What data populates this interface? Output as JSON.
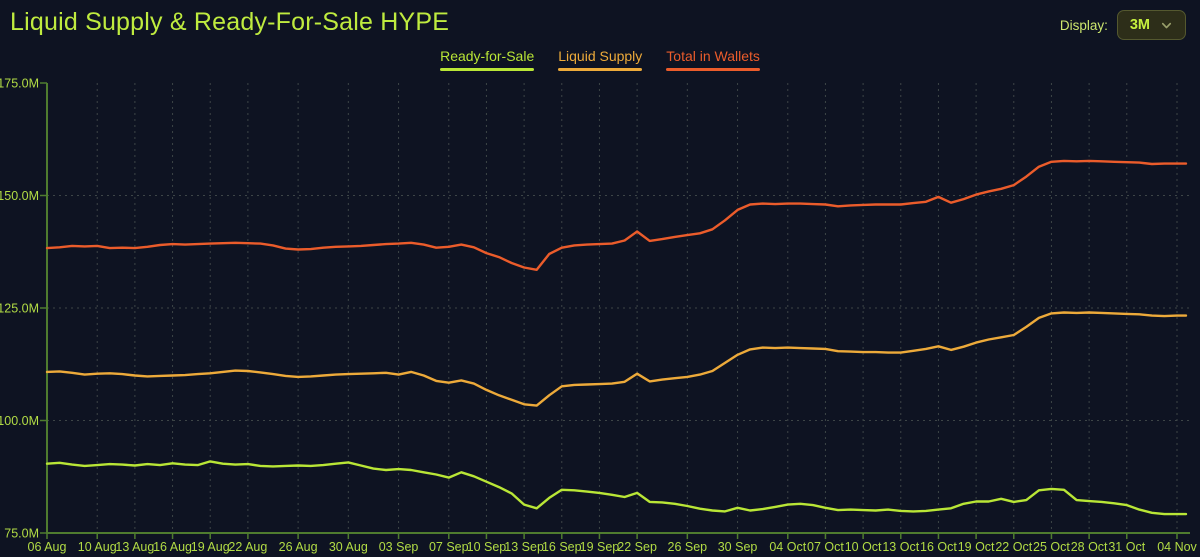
{
  "header": {
    "title": "Liquid Supply & Ready-For-Sale HYPE",
    "display_label": "Display:",
    "display_value": "3M"
  },
  "legend": [
    {
      "label": "Ready-for-Sale",
      "color": "#b9e636"
    },
    {
      "label": "Liquid Supply",
      "color": "#edaa3a"
    },
    {
      "label": "Total in Wallets",
      "color": "#eb5c2b"
    }
  ],
  "colors": {
    "background": "#0e1322",
    "accent": "#bfeb3f",
    "axis_line": "#4f7c2f",
    "axis_label": "#b2dc45",
    "grid": "#3d4547",
    "dropdown_bg": "#2d2e19",
    "dropdown_border": "#54582f",
    "dropdown_text": "#c6f13e",
    "chevron": "#9aa06b"
  },
  "chart_data": {
    "type": "line",
    "title": "Liquid Supply & Ready-For-Sale HYPE",
    "xlabel": "",
    "ylabel": "",
    "ylim": [
      75,
      175
    ],
    "grid": true,
    "legend_position": "top",
    "x_range": [
      "06 Aug",
      "04 Nov"
    ],
    "y_ticks": [
      {
        "label": "175.0M",
        "value": 175
      },
      {
        "label": "150.0M",
        "value": 150
      },
      {
        "label": "125.0M",
        "value": 125
      },
      {
        "label": "100.0M",
        "value": 100
      },
      {
        "label": "75.0M",
        "value": 75
      }
    ],
    "x_ticks": [
      {
        "label": "06 Aug",
        "day": 0
      },
      {
        "label": "10 Aug",
        "day": 4
      },
      {
        "label": "13 Aug",
        "day": 7
      },
      {
        "label": "16 Aug",
        "day": 10
      },
      {
        "label": "19 Aug",
        "day": 13
      },
      {
        "label": "22 Aug",
        "day": 16
      },
      {
        "label": "26 Aug",
        "day": 20
      },
      {
        "label": "30 Aug",
        "day": 24
      },
      {
        "label": "03 Sep",
        "day": 28
      },
      {
        "label": "07 Sep",
        "day": 32
      },
      {
        "label": "10 Sep",
        "day": 35
      },
      {
        "label": "13 Sep",
        "day": 38
      },
      {
        "label": "16 Sep",
        "day": 41
      },
      {
        "label": "19 Sep",
        "day": 44
      },
      {
        "label": "22 Sep",
        "day": 47
      },
      {
        "label": "26 Sep",
        "day": 51
      },
      {
        "label": "30 Sep",
        "day": 55
      },
      {
        "label": "04 Oct",
        "day": 59
      },
      {
        "label": "07 Oct",
        "day": 62
      },
      {
        "label": "10 Oct",
        "day": 65
      },
      {
        "label": "13 Oct",
        "day": 68
      },
      {
        "label": "16 Oct",
        "day": 71
      },
      {
        "label": "19 Oct",
        "day": 74
      },
      {
        "label": "22 Oct",
        "day": 77
      },
      {
        "label": "25 Oct",
        "day": 80
      },
      {
        "label": "28 Oct",
        "day": 83
      },
      {
        "label": "31 Oct",
        "day": 86
      },
      {
        "label": "04 Nov",
        "day": 90
      }
    ],
    "unit": "M HYPE",
    "series": [
      {
        "name": "Ready-for-Sale",
        "color": "#b9e636",
        "values": [
          90.4,
          90.6,
          90.2,
          89.9,
          90.1,
          90.3,
          90.2,
          90.0,
          90.3,
          90.1,
          90.5,
          90.2,
          90.1,
          90.9,
          90.4,
          90.2,
          90.3,
          89.9,
          89.8,
          89.9,
          90.0,
          89.9,
          90.1,
          90.4,
          90.7,
          90.0,
          89.3,
          89.0,
          89.2,
          89.0,
          88.5,
          88.0,
          87.3,
          88.5,
          87.6,
          86.4,
          85.2,
          83.8,
          81.3,
          80.5,
          82.8,
          84.6,
          84.5,
          84.2,
          83.9,
          83.5,
          83.0,
          83.9,
          81.9,
          81.8,
          81.5,
          81.0,
          80.4,
          80.0,
          79.8,
          80.6,
          80.0,
          80.3,
          80.8,
          81.3,
          81.5,
          81.2,
          80.6,
          80.1,
          80.2,
          80.1,
          80.0,
          80.2,
          79.9,
          79.8,
          79.9,
          80.2,
          80.5,
          81.5,
          82.0,
          82.0,
          82.6,
          81.9,
          82.3,
          84.5,
          84.8,
          84.6,
          82.3,
          82.1,
          81.9,
          81.6,
          81.2,
          80.2,
          79.5,
          79.2,
          79.2
        ]
      },
      {
        "name": "Liquid Supply",
        "color": "#edaa3a",
        "values": [
          110.8,
          110.9,
          110.6,
          110.2,
          110.4,
          110.5,
          110.3,
          110.0,
          109.8,
          109.9,
          110.0,
          110.1,
          110.3,
          110.5,
          110.8,
          111.1,
          111.0,
          110.7,
          110.3,
          109.9,
          109.7,
          109.8,
          110.0,
          110.2,
          110.3,
          110.4,
          110.5,
          110.6,
          110.2,
          110.8,
          110.0,
          108.8,
          108.4,
          108.9,
          108.2,
          106.8,
          105.6,
          104.6,
          103.6,
          103.3,
          105.6,
          107.6,
          107.9,
          108.0,
          108.1,
          108.2,
          108.6,
          110.4,
          108.7,
          109.1,
          109.4,
          109.7,
          110.2,
          111.0,
          112.8,
          114.6,
          115.8,
          116.2,
          116.1,
          116.2,
          116.1,
          116.0,
          115.9,
          115.4,
          115.3,
          115.2,
          115.2,
          115.1,
          115.1,
          115.5,
          115.9,
          116.5,
          115.7,
          116.4,
          117.3,
          118.0,
          118.5,
          119.0,
          120.8,
          122.8,
          123.8,
          124.0,
          123.9,
          124.0,
          123.9,
          123.8,
          123.7,
          123.6,
          123.3,
          123.2,
          123.3
        ]
      },
      {
        "name": "Total in Wallets",
        "color": "#eb5c2b",
        "values": [
          138.3,
          138.5,
          138.8,
          138.7,
          138.8,
          138.3,
          138.4,
          138.3,
          138.6,
          139.0,
          139.2,
          139.1,
          139.2,
          139.3,
          139.4,
          139.5,
          139.4,
          139.3,
          138.9,
          138.2,
          138.0,
          138.1,
          138.4,
          138.6,
          138.7,
          138.8,
          139.0,
          139.2,
          139.3,
          139.5,
          139.1,
          138.4,
          138.6,
          139.1,
          138.5,
          137.2,
          136.3,
          135.0,
          134.0,
          133.5,
          137.0,
          138.4,
          138.9,
          139.1,
          139.2,
          139.3,
          140.0,
          142.0,
          139.9,
          140.3,
          140.8,
          141.2,
          141.6,
          142.5,
          144.5,
          146.8,
          148.0,
          148.2,
          148.1,
          148.2,
          148.2,
          148.1,
          148.0,
          147.6,
          147.8,
          147.9,
          148.0,
          148.0,
          148.0,
          148.3,
          148.6,
          149.7,
          148.4,
          149.2,
          150.2,
          150.9,
          151.5,
          152.3,
          154.2,
          156.4,
          157.5,
          157.7,
          157.6,
          157.7,
          157.6,
          157.5,
          157.4,
          157.3,
          157.0,
          157.1,
          157.1
        ]
      }
    ]
  }
}
